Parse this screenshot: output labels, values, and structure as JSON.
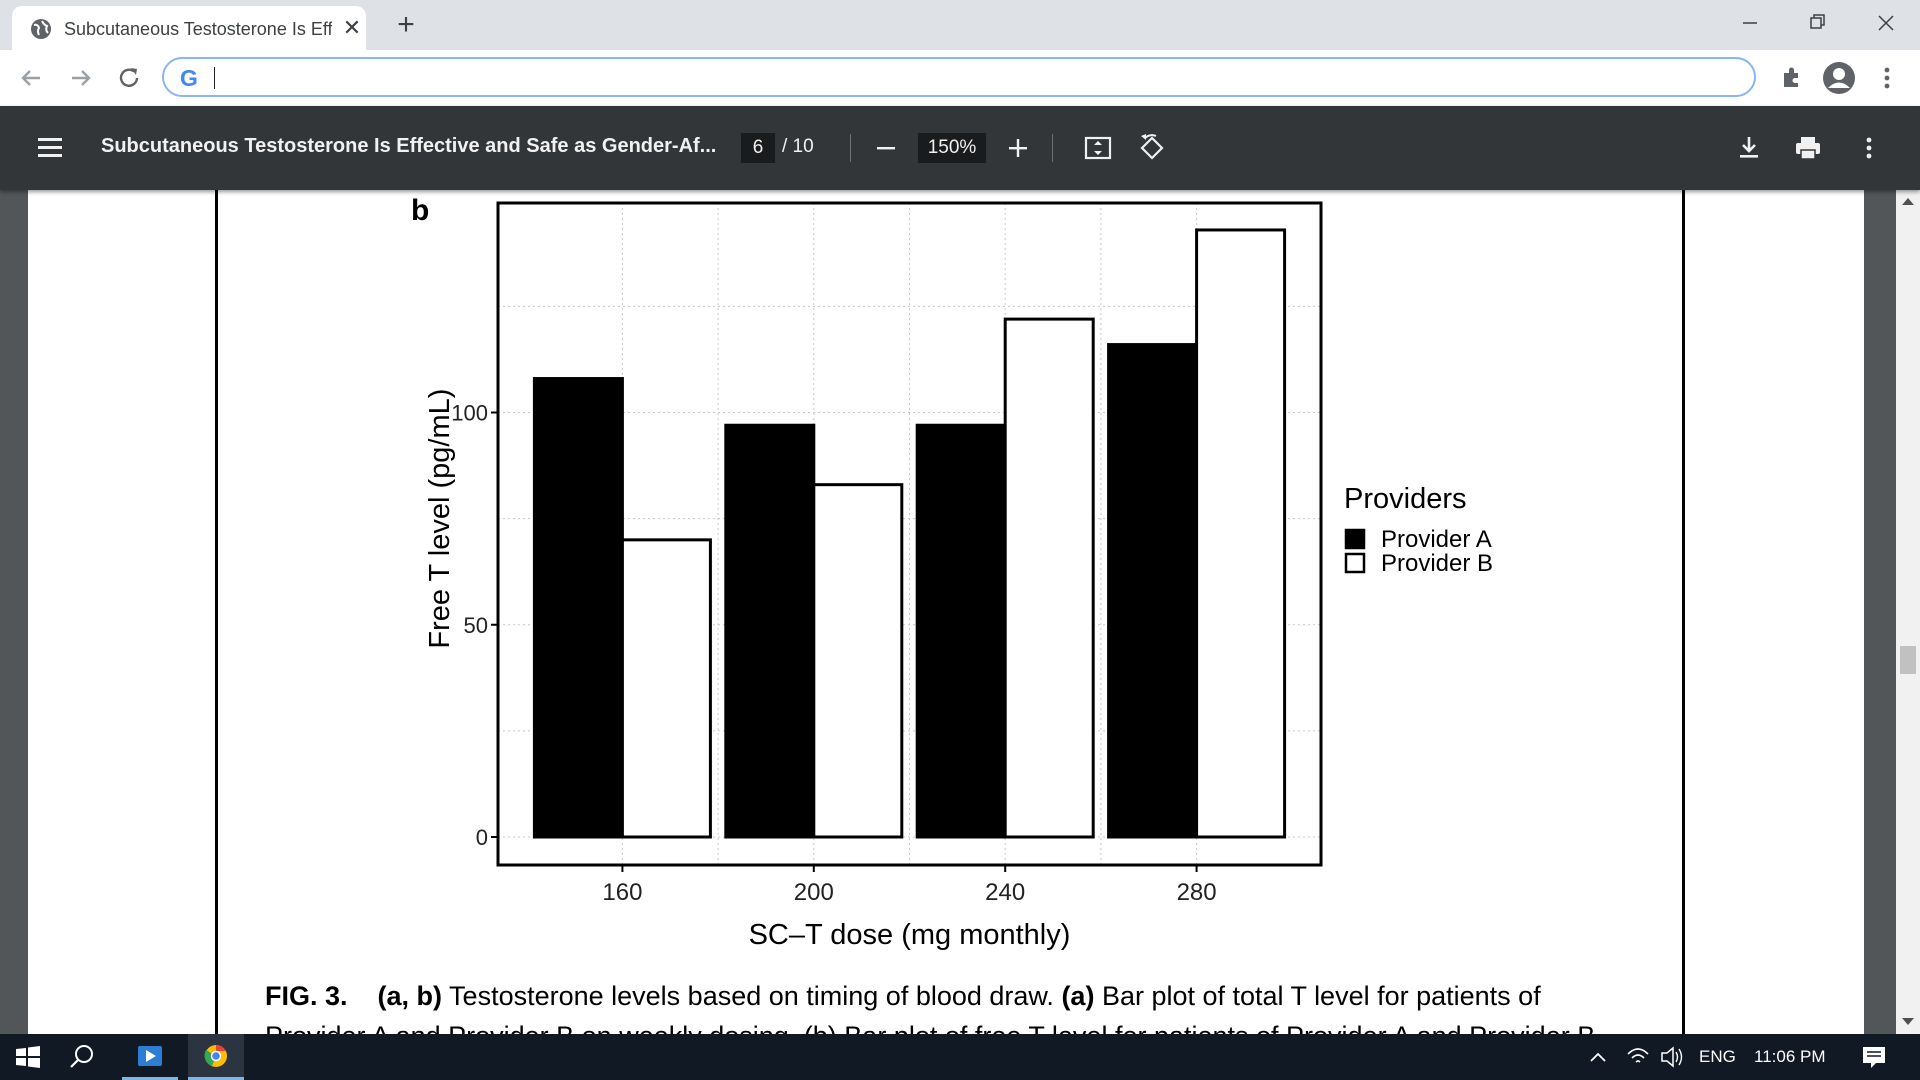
{
  "browser": {
    "tab_title": "Subcutaneous Testosterone Is Effective and Safe as Gender-Affirming Hormone Therapy",
    "omnibox_value": "",
    "search_engine_glyph": "G"
  },
  "pdf_toolbar": {
    "title": "Subcutaneous Testosterone Is Effective and Safe as Gender-Af...",
    "current_page": "6",
    "total_pages": "/ 10",
    "zoom": "150%"
  },
  "document": {
    "panel_label": "b",
    "caption_fig": "FIG. 3.",
    "caption_ab": "(a, b)",
    "caption_text1": " Testosterone levels based on timing of blood draw. ",
    "caption_a": "(a)",
    "caption_text2": " Bar plot of total T level for patients of",
    "caption_line2": "Provider A and Provider B on weekly dosing. (b) Bar plot of free T level for patients of Provider A and Provider B"
  },
  "chart_data": {
    "type": "bar",
    "title": "",
    "xlabel": "SC–T dose (mg monthly)",
    "ylabel": "Free T level (pg/mL)",
    "categories": [
      "160",
      "200",
      "240",
      "280"
    ],
    "y_ticks": [
      0,
      50,
      100
    ],
    "ylim": [
      0,
      150
    ],
    "grid": true,
    "legend": {
      "title": "Providers",
      "placement": "right"
    },
    "series": [
      {
        "name": "Provider A",
        "color": "#000000",
        "values": [
          108,
          97,
          97,
          116
        ]
      },
      {
        "name": "Provider B",
        "color": "#ffffff",
        "values": [
          70,
          83,
          122,
          143
        ]
      }
    ]
  },
  "taskbar": {
    "language": "ENG",
    "time": "11:06 PM"
  }
}
